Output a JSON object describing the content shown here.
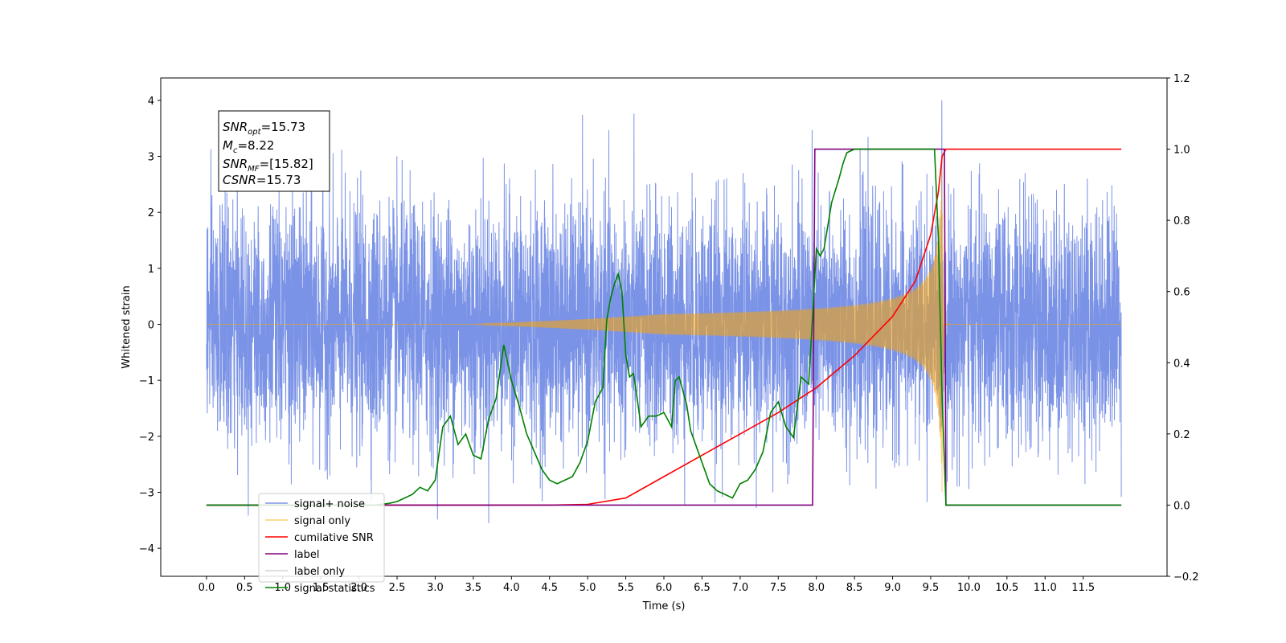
{
  "chart_data": {
    "type": "line",
    "xlabel": "Time (s)",
    "ylabel": "Whitened strain",
    "xlim": [
      -0.6,
      12.6
    ],
    "ylim": [
      -4.5,
      4.4
    ],
    "y2lim": [
      -0.2,
      1.2
    ],
    "x_ticks": [
      0.0,
      0.5,
      1.0,
      1.5,
      2.0,
      2.5,
      3.0,
      3.5,
      4.0,
      4.5,
      5.0,
      5.5,
      6.0,
      6.5,
      7.0,
      7.5,
      8.0,
      8.5,
      9.0,
      9.5,
      10.0,
      10.5,
      11.0,
      11.5
    ],
    "x_tick_labels": [
      "0.0",
      "0.5",
      "1.0",
      "1.5",
      "2.0",
      "2.5",
      "3.0",
      "3.5",
      "4.0",
      "4.5",
      "5.0",
      "5.5",
      "6.0",
      "6.5",
      "7.0",
      "7.5",
      "8.0",
      "8.5",
      "9.0",
      "9.5",
      "10.0",
      "10.5",
      "11.0",
      "11.5"
    ],
    "y_ticks": [
      -4,
      -3,
      -2,
      -1,
      0,
      1,
      2,
      3,
      4
    ],
    "y_tick_labels": [
      "−4",
      "−3",
      "−2",
      "−1",
      "0",
      "1",
      "2",
      "3",
      "4"
    ],
    "y2_ticks": [
      -0.2,
      0.0,
      0.2,
      0.4,
      0.6,
      0.8,
      1.0,
      1.2
    ],
    "y2_tick_labels": [
      "−0.2",
      "0.0",
      "0.2",
      "0.4",
      "0.6",
      "0.8",
      "1.0",
      "1.2"
    ],
    "grid": false,
    "legend_position": "lower-left",
    "info_box": {
      "snr_opt": {
        "base": "SNR",
        "sub": "opt",
        "value": "=15.73"
      },
      "mc": {
        "base": "M",
        "sub": "c",
        "value": "=8.22"
      },
      "snr_mf": {
        "base": "SNR",
        "sub": "MF",
        "value": "=[15.82]"
      },
      "csnr": {
        "base": "CSNR",
        "value": "=15.73"
      }
    },
    "series": [
      {
        "name": "signal+ noise",
        "axis": "left",
        "color": "#7b93e6",
        "x_range": [
          0.0,
          12.0
        ],
        "typical_amplitude": 1.0,
        "envelope_max": 4.0,
        "envelope_min": -4.1,
        "description_peak_times": [
          6.5,
          9.95
        ]
      },
      {
        "name": "signal only",
        "axis": "left",
        "color": "#ffa500",
        "x_range": [
          0.0,
          12.0
        ],
        "chirp_start": 5.5,
        "merger_time": 9.65,
        "peak_amplitude": 3.0
      },
      {
        "name": "cumilative SNR",
        "axis": "right",
        "color": "#ff0000",
        "x": [
          0.0,
          4.5,
          5.0,
          5.5,
          6.0,
          6.5,
          7.0,
          7.5,
          8.0,
          8.5,
          9.0,
          9.3,
          9.5,
          9.6,
          9.65,
          9.7,
          12.0
        ],
        "values": [
          0.0,
          0.0,
          0.002,
          0.02,
          0.08,
          0.14,
          0.2,
          0.26,
          0.33,
          0.42,
          0.53,
          0.63,
          0.76,
          0.88,
          0.98,
          1.0,
          1.0
        ]
      },
      {
        "name": "label",
        "axis": "right",
        "color": "#800080",
        "x": [
          0.0,
          7.95,
          7.98,
          9.68,
          9.7,
          12.0
        ],
        "values": [
          0.0,
          0.0,
          1.0,
          1.0,
          0.0,
          0.0
        ]
      },
      {
        "name": "label only",
        "axis": "right",
        "color": "#d3d3d3",
        "x": [],
        "values": []
      },
      {
        "name": "signal statistics",
        "axis": "right",
        "color": "#008000",
        "x": [
          0.0,
          2.2,
          2.4,
          2.5,
          2.6,
          2.7,
          2.8,
          2.9,
          3.0,
          3.1,
          3.2,
          3.3,
          3.4,
          3.5,
          3.6,
          3.7,
          3.8,
          3.9,
          4.0,
          4.1,
          4.2,
          4.3,
          4.4,
          4.5,
          4.6,
          4.7,
          4.8,
          4.9,
          5.0,
          5.1,
          5.2,
          5.25,
          5.3,
          5.35,
          5.4,
          5.45,
          5.5,
          5.55,
          5.6,
          5.65,
          5.7,
          5.8,
          5.9,
          6.0,
          6.1,
          6.15,
          6.2,
          6.3,
          6.35,
          6.4,
          6.5,
          6.6,
          6.7,
          6.8,
          6.9,
          7.0,
          7.1,
          7.2,
          7.3,
          7.4,
          7.5,
          7.6,
          7.7,
          7.8,
          7.9,
          8.0,
          8.05,
          8.1,
          8.2,
          8.3,
          8.35,
          8.4,
          8.5,
          8.6,
          8.7,
          9.0,
          9.3,
          9.55,
          9.6,
          9.65,
          9.7,
          10.0,
          12.0
        ],
        "values": [
          0.0,
          0.0,
          0.005,
          0.01,
          0.02,
          0.03,
          0.05,
          0.04,
          0.07,
          0.22,
          0.25,
          0.17,
          0.2,
          0.14,
          0.13,
          0.24,
          0.3,
          0.45,
          0.35,
          0.28,
          0.2,
          0.15,
          0.1,
          0.07,
          0.06,
          0.07,
          0.08,
          0.12,
          0.18,
          0.29,
          0.33,
          0.52,
          0.58,
          0.62,
          0.65,
          0.6,
          0.42,
          0.36,
          0.37,
          0.3,
          0.22,
          0.25,
          0.25,
          0.26,
          0.22,
          0.35,
          0.36,
          0.28,
          0.21,
          0.18,
          0.12,
          0.06,
          0.04,
          0.03,
          0.02,
          0.06,
          0.07,
          0.1,
          0.15,
          0.26,
          0.29,
          0.22,
          0.19,
          0.36,
          0.34,
          0.72,
          0.7,
          0.72,
          0.85,
          0.92,
          0.96,
          0.99,
          1.0,
          1.0,
          1.0,
          1.0,
          1.0,
          1.0,
          0.75,
          0.3,
          0.0,
          0.0,
          0.0
        ]
      }
    ]
  }
}
